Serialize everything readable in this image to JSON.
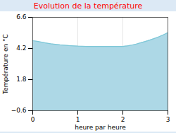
{
  "chart_data": {
    "type": "area",
    "title": "Evolution de la température",
    "x_label": "heure par heure",
    "y_label": "Température en °C",
    "x": [
      0,
      0.1,
      0.2,
      0.3,
      0.4,
      0.5,
      0.6,
      0.7,
      0.8,
      0.9,
      1.0,
      1.1,
      1.2,
      1.3,
      1.4,
      1.5,
      1.6,
      1.7,
      1.8,
      1.9,
      2.0,
      2.1,
      2.2,
      2.3,
      2.4,
      2.5,
      2.6,
      2.7,
      2.8,
      2.9,
      3.0
    ],
    "series": [
      {
        "type": "area",
        "color": "#add8e6",
        "values": [
          4.8,
          4.75,
          4.68,
          4.62,
          4.56,
          4.52,
          4.48,
          4.45,
          4.42,
          4.4,
          4.38,
          4.37,
          4.36,
          4.36,
          4.36,
          4.36,
          4.36,
          4.36,
          4.36,
          4.36,
          4.36,
          4.4,
          4.46,
          4.54,
          4.64,
          4.74,
          4.85,
          4.97,
          5.1,
          5.25,
          5.42
        ]
      },
      {
        "type": "line",
        "color": "#7ec8d8",
        "values": [
          4.8,
          4.75,
          4.68,
          4.62,
          4.56,
          4.52,
          4.48,
          4.45,
          4.42,
          4.4,
          4.38,
          4.37,
          4.36,
          4.36,
          4.36,
          4.36,
          4.36,
          4.36,
          4.36,
          4.36,
          4.36,
          4.4,
          4.46,
          4.54,
          4.64,
          4.74,
          4.85,
          4.97,
          5.1,
          5.25,
          5.42
        ]
      }
    ],
    "xlim": [
      0,
      3
    ],
    "xticks": [
      0,
      1,
      2,
      3
    ],
    "ylim": [
      -0.6,
      6.6
    ],
    "yticks": [
      -0.6,
      1.8,
      4.2,
      6.6
    ],
    "grid": true
  }
}
